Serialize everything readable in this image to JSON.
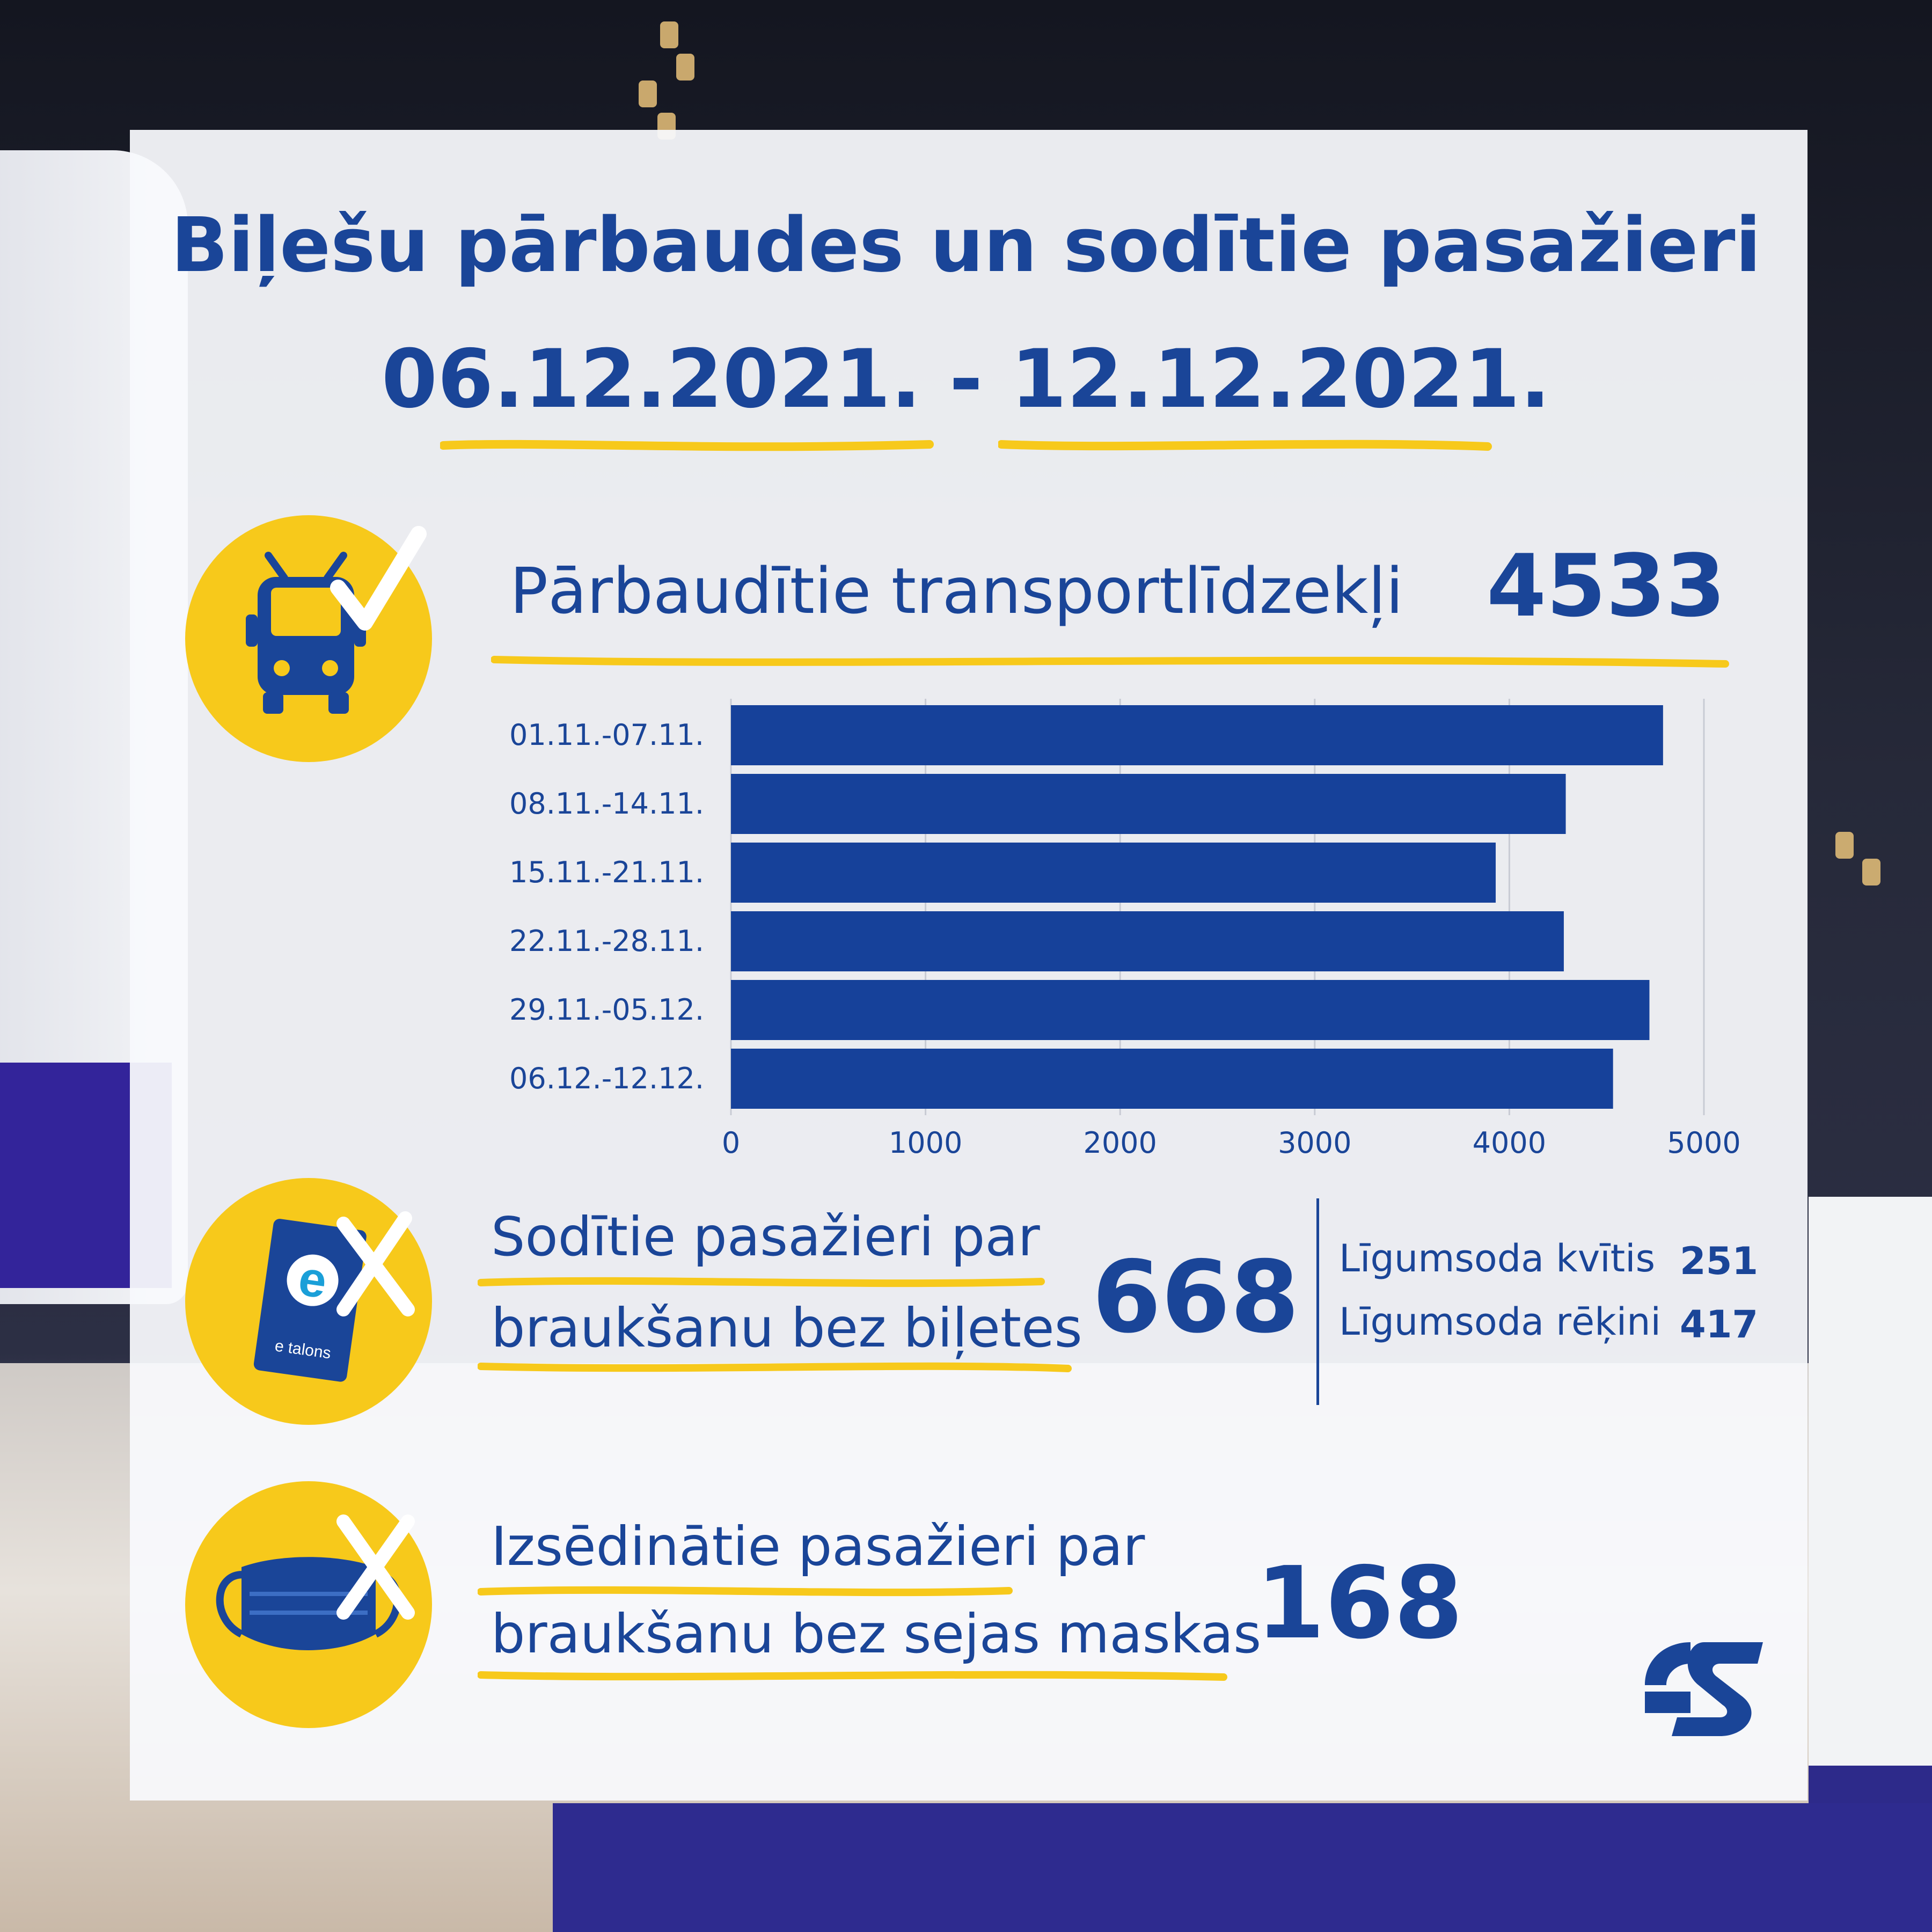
{
  "header": {
    "title": "Biļešu pārbaudes un sodītie pasažieri",
    "period": "06.12.2021. - 12.12.2021."
  },
  "vehicles": {
    "label": "Pārbaudītie transportlīdzekļi",
    "value": "4533",
    "icon": "trolleybus-check-icon"
  },
  "fined": {
    "label_line1": "Sodītie pasažieri par",
    "label_line2": "braukšanu bez biļetes",
    "value": "668",
    "icon": "etalons-card-cross-icon",
    "card_letter": "e",
    "card_text": "e talons",
    "breakdown": [
      {
        "label": "Līgumsoda kvītis",
        "value": "251"
      },
      {
        "label": "Līgumsoda rēķini",
        "value": "417"
      }
    ]
  },
  "removed": {
    "label_line1": "Izsēdinātie pasažieri par",
    "label_line2": "braukšanu bez sejas maskas",
    "value": "168",
    "icon": "face-mask-cross-icon"
  },
  "logo": {
    "icon": "rigas-satiksme-logo"
  },
  "colors": {
    "primary": "#1a4598",
    "accent": "#f7c91b",
    "bar": "#16419a"
  },
  "chart_data": {
    "type": "bar",
    "orientation": "horizontal",
    "categories": [
      "01.11.-07.11.",
      "08.11.-14.11.",
      "15.11.-21.11.",
      "22.11.-28.11.",
      "29.11.-05.12.",
      "06.12.-12.12."
    ],
    "values": [
      4790,
      4290,
      3930,
      4280,
      4720,
      4533
    ],
    "xlim": [
      0,
      5000
    ],
    "xticks": [
      "0",
      "1000",
      "2000",
      "3000",
      "4000",
      "5000"
    ],
    "grid": true
  }
}
